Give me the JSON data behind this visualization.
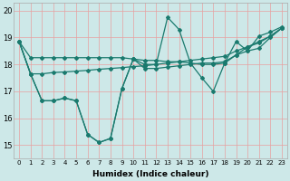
{
  "xlabel": "Humidex (Indice chaleur)",
  "ylabel": "",
  "bg_color": "#cde8e8",
  "line_color": "#1a7a6e",
  "grid_color": "#e8a0a0",
  "ylim": [
    14.5,
    20.3
  ],
  "xlim": [
    -0.5,
    23.5
  ],
  "yticks": [
    15,
    16,
    17,
    18,
    19,
    20
  ],
  "xticks": [
    0,
    1,
    2,
    3,
    4,
    5,
    6,
    7,
    8,
    9,
    10,
    11,
    12,
    13,
    14,
    15,
    16,
    17,
    18,
    19,
    20,
    21,
    22,
    23
  ],
  "series": [
    [
      18.85,
      18.25,
      18.25,
      18.25,
      18.25,
      18.25,
      18.25,
      18.25,
      18.25,
      18.25,
      18.2,
      18.15,
      18.15,
      18.1,
      18.1,
      18.05,
      18.0,
      18.0,
      18.05,
      18.35,
      18.5,
      18.6,
      19.0,
      19.35
    ],
    [
      18.85,
      17.65,
      17.65,
      17.7,
      17.72,
      17.75,
      17.78,
      17.82,
      17.85,
      17.88,
      17.92,
      17.95,
      18.0,
      18.05,
      18.1,
      18.15,
      18.2,
      18.25,
      18.3,
      18.5,
      18.65,
      18.8,
      19.05,
      19.35
    ],
    [
      18.85,
      17.65,
      16.65,
      16.65,
      16.75,
      16.65,
      15.4,
      15.1,
      15.25,
      17.1,
      18.2,
      18.0,
      18.0,
      19.75,
      19.3,
      18.05,
      17.5,
      17.0,
      18.05,
      18.85,
      18.5,
      19.05,
      19.2,
      19.4
    ],
    [
      18.85,
      17.65,
      16.65,
      16.65,
      16.75,
      16.65,
      15.4,
      15.1,
      15.25,
      17.1,
      18.2,
      17.85,
      17.85,
      17.9,
      17.95,
      18.0,
      18.05,
      18.05,
      18.1,
      18.35,
      18.65,
      18.85,
      19.05,
      19.35
    ]
  ]
}
